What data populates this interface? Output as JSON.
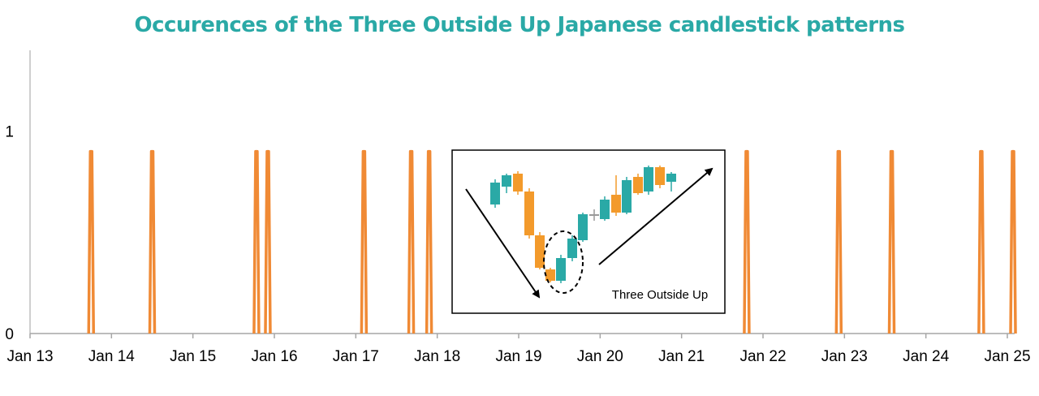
{
  "chart_data": {
    "type": "line",
    "title": "Occurences of the Three Outside Up Japanese candlestick patterns",
    "xlabel": "",
    "ylabel": "",
    "x_tick_labels": [
      "Jan 13",
      "Jan 14",
      "Jan 15",
      "Jan 16",
      "Jan 17",
      "Jan 18",
      "Jan 19",
      "Jan 20",
      "Jan 21",
      "Jan 22",
      "Jan 23",
      "Jan 24",
      "Jan 25"
    ],
    "y_tick_labels": [
      "0",
      "1"
    ],
    "xlim": [
      2013.0,
      2025.0
    ],
    "ylim": [
      0,
      1.4
    ],
    "series": [
      {
        "color": "#f08a35",
        "occurrence_dates": [
          2013.75,
          2014.5,
          2015.78,
          2015.92,
          2017.1,
          2017.68,
          2017.9,
          2021.8,
          2022.93,
          2023.58,
          2024.68,
          2025.07
        ],
        "value_at_occurrence": 0.9,
        "value_otherwise": 0
      }
    ],
    "grid": false,
    "legend": "none",
    "inset": {
      "caption": "Three Outside Up",
      "bull_color": "#2aa9a6",
      "bear_color": "#f39a2b",
      "doji_color": "#999999"
    }
  }
}
